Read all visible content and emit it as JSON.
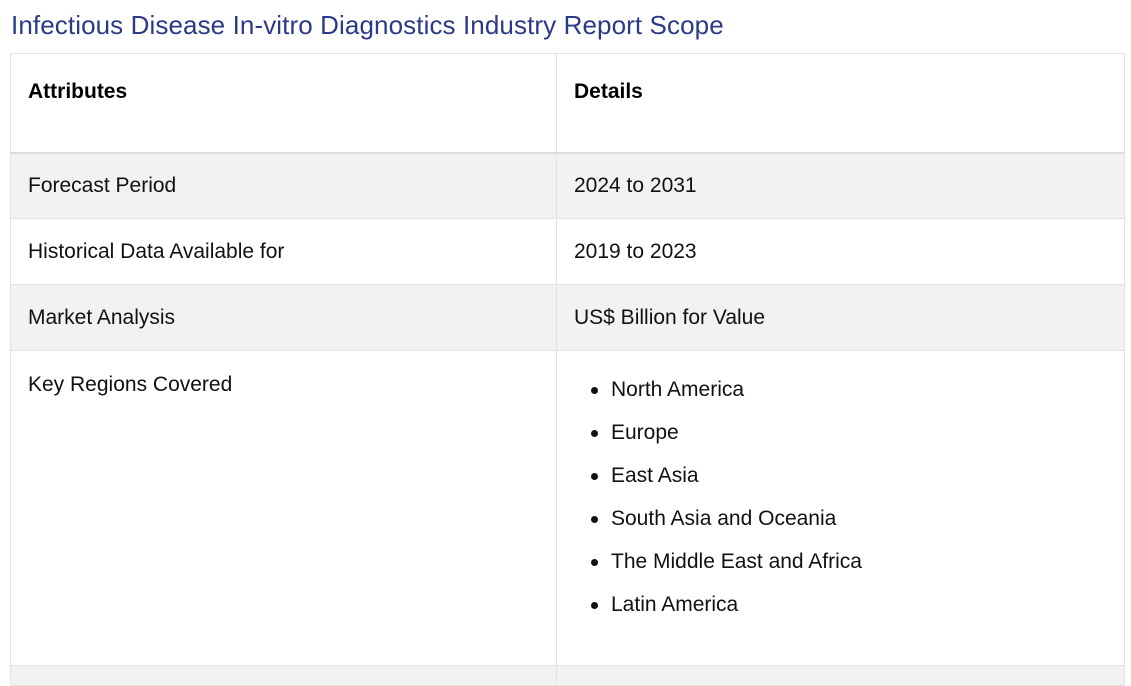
{
  "title": "Infectious Disease In-vitro Diagnostics Industry Report Scope",
  "table": {
    "headers": [
      "Attributes",
      "Details"
    ],
    "rows": [
      {
        "attribute": "Forecast Period",
        "detail": "2024 to 2031"
      },
      {
        "attribute": "Historical Data Available for",
        "detail": "2019 to 2023"
      },
      {
        "attribute": "Market Analysis",
        "detail": "US$ Billion for Value"
      }
    ],
    "regions": {
      "attribute": "Key Regions Covered",
      "items": [
        "North America",
        "Europe",
        "East Asia",
        "South Asia and Oceania",
        "The Middle East and Africa",
        "Latin America"
      ]
    }
  },
  "colors": {
    "title": "#2b3a86",
    "row_shade": "#f2f2f2",
    "border": "#e3e3e3"
  }
}
